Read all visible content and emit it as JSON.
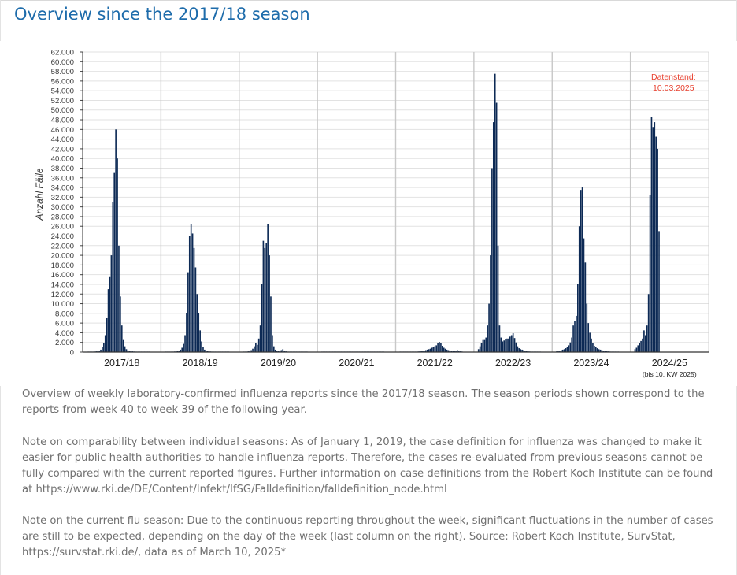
{
  "page_title": "Overview since the 2017/18 season",
  "chart_data": {
    "type": "bar",
    "ylabel": "Anzahl Fälle",
    "xlabel": "",
    "ylim": [
      0,
      62000
    ],
    "yticks": [
      0,
      2000,
      4000,
      6000,
      8000,
      10000,
      12000,
      14000,
      16000,
      18000,
      20000,
      22000,
      24000,
      26000,
      28000,
      30000,
      32000,
      34000,
      36000,
      38000,
      40000,
      42000,
      44000,
      46000,
      48000,
      50000,
      52000,
      54000,
      56000,
      58000,
      60000,
      62000
    ],
    "ytick_labels": [
      "0",
      "2.000",
      "4.000",
      "6.000",
      "8.000",
      "10.000",
      "12.000",
      "14.000",
      "16.000",
      "18.000",
      "20.000",
      "22.000",
      "24.000",
      "26.000",
      "28.000",
      "30.000",
      "32.000",
      "34.000",
      "36.000",
      "38.000",
      "40.000",
      "42.000",
      "44.000",
      "46.000",
      "48.000",
      "50.000",
      "52.000",
      "54.000",
      "56.000",
      "58.000",
      "60.000",
      "62.000"
    ],
    "grid": "horizontal",
    "bar_color": "#0d2a55",
    "annotation": {
      "line1": "Datenstand:",
      "line2": "10.03.2025",
      "color": "#e8402f"
    },
    "seasons": [
      {
        "label": "2017/18",
        "values": [
          50,
          60,
          70,
          80,
          90,
          110,
          150,
          200,
          300,
          500,
          1000,
          1800,
          3500,
          7000,
          13000,
          15500,
          20000,
          31000,
          37000,
          46000,
          40000,
          22000,
          11500,
          5500,
          2500,
          1200,
          600,
          350,
          250,
          180,
          150,
          120,
          100,
          90,
          80,
          70,
          60,
          55,
          50,
          45,
          40,
          35
        ]
      },
      {
        "label": "2018/19",
        "values": [
          40,
          50,
          60,
          70,
          80,
          100,
          120,
          150,
          200,
          300,
          500,
          900,
          1700,
          3500,
          8000,
          16500,
          24000,
          26500,
          24500,
          21500,
          17500,
          12000,
          8000,
          4500,
          2200,
          1000,
          500,
          300,
          200,
          150,
          120,
          100,
          90,
          80,
          70,
          60,
          50,
          45,
          40,
          35,
          30,
          28,
          25
        ]
      },
      {
        "label": "2019/20",
        "values": [
          60,
          80,
          100,
          150,
          250,
          400,
          700,
          1200,
          1800,
          1500,
          2800,
          5500,
          14000,
          23000,
          21500,
          22500,
          26500,
          20000,
          11500,
          3500,
          1200,
          500,
          300,
          200,
          150,
          400,
          600,
          300,
          150,
          100,
          80,
          60,
          50,
          40,
          30,
          25,
          20,
          20,
          15,
          15,
          10,
          10,
          10
        ]
      },
      {
        "label": "2020/21",
        "values": [
          10,
          10,
          10,
          10,
          10,
          10,
          10,
          10,
          10,
          10,
          10,
          10,
          10,
          10,
          10,
          10,
          10,
          10,
          10,
          10,
          10,
          10,
          10,
          10,
          10,
          10,
          10,
          10,
          10,
          10,
          10,
          10,
          10,
          10,
          10,
          10,
          10,
          10,
          10,
          10,
          10,
          10
        ]
      },
      {
        "label": "2021/22",
        "values": [
          20,
          20,
          20,
          20,
          30,
          30,
          40,
          50,
          60,
          70,
          80,
          100,
          120,
          150,
          200,
          250,
          300,
          400,
          500,
          600,
          700,
          900,
          1000,
          1200,
          1400,
          1800,
          2100,
          1800,
          1300,
          900,
          700,
          500,
          400,
          300,
          250,
          200,
          180,
          300,
          400,
          200,
          150,
          120
        ]
      },
      {
        "label": "2022/23",
        "values": [
          600,
          1200,
          1800,
          2500,
          2500,
          3000,
          5500,
          10000,
          20000,
          38000,
          47500,
          57500,
          51500,
          22000,
          5500,
          3000,
          2200,
          2400,
          2600,
          2800,
          2800,
          3200,
          3500,
          3900,
          2900,
          2000,
          1200,
          800,
          600,
          500,
          400,
          300,
          200,
          150,
          120,
          100,
          90,
          80,
          70,
          60,
          55,
          50
        ]
      },
      {
        "label": "2023/24",
        "values": [
          150,
          200,
          300,
          400,
          500,
          600,
          800,
          1000,
          1400,
          2000,
          3000,
          5500,
          6500,
          7500,
          14000,
          26000,
          33500,
          34000,
          23500,
          18500,
          10000,
          6000,
          4000,
          2800,
          1800,
          1300,
          1000,
          800,
          600,
          500,
          400,
          300,
          250,
          200,
          150,
          120,
          100,
          90,
          80,
          70,
          60,
          60
        ]
      },
      {
        "label": "2024/25",
        "values": [
          600,
          900,
          1400,
          1800,
          2300,
          2800,
          4500,
          3500,
          5500,
          12000,
          32500,
          48500,
          46500,
          47500,
          44500,
          42000,
          25000
        ]
      }
    ],
    "x_sublabel": "(bis 10. KW 2025)"
  },
  "paragraphs": {
    "p1": "Overview of weekly laboratory-confirmed influenza reports since the 2017/18 season. The season periods shown correspond to the reports from week 40 to week 39 of the following year.",
    "p2": "Note on comparability between individual seasons: As of January 1, 2019, the case definition for influenza was changed to make it easier for public health authorities to handle influenza reports. Therefore, the cases re-evaluated from previous seasons cannot be fully compared with the current reported figures. Further information on case definitions from the Robert Koch Institute can be found at https://www.rki.de/DE/Content/Infekt/IfSG/Falldefinition/falldefinition_node.html",
    "p3": "Note on the current flu season: Due to the continuous reporting throughout the week, significant fluctuations in the number of cases are still to be expected, depending on the day of the week (last column on the right). Source: Robert Koch Institute, SurvStat, https://survstat.rki.de/, data as of March 10, 2025*"
  }
}
